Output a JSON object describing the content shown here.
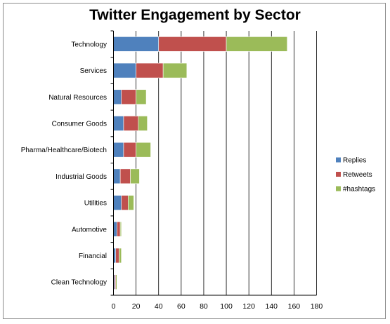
{
  "chart_data": {
    "type": "bar",
    "orientation": "horizontal",
    "stacked": true,
    "title": "Twitter Engagement by Sector",
    "categories": [
      "Technology",
      "Services",
      "Natural Resources",
      "Consumer Goods",
      "Pharma/Healthcare/Biotech",
      "Industrial Goods",
      "Utilities",
      "Automotive",
      "Financial",
      "Clean Technology"
    ],
    "series": [
      {
        "name": "Replies",
        "color": "#4f81bd",
        "values": [
          40,
          20,
          7,
          9,
          9,
          6,
          7,
          3,
          2,
          1
        ]
      },
      {
        "name": "Retweets",
        "color": "#c0504d",
        "values": [
          60,
          24,
          13,
          13,
          11,
          9,
          6,
          3,
          3,
          1
        ]
      },
      {
        "name": "#hashtags",
        "color": "#9bbb59",
        "values": [
          54,
          21,
          9,
          8,
          13,
          8,
          5,
          1,
          2,
          1
        ]
      }
    ],
    "xlim": [
      0,
      180
    ],
    "xticks": [
      0,
      20,
      40,
      60,
      80,
      100,
      120,
      140,
      160,
      180
    ],
    "grid": "vertical",
    "legend_position": "right"
  }
}
